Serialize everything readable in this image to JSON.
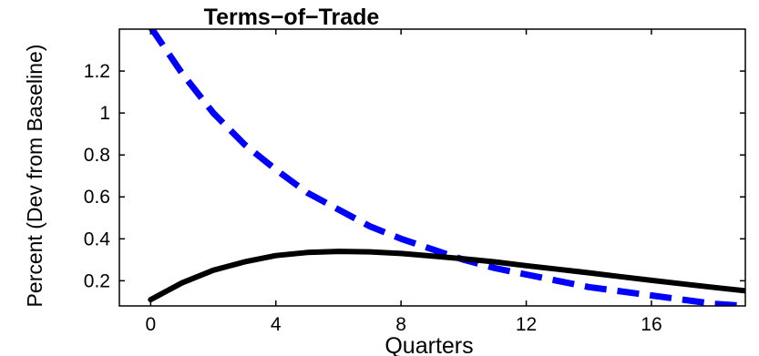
{
  "chart_data": {
    "type": "line",
    "title": "Terms−of−Trade",
    "xlabel": "Quarters",
    "ylabel": "Percent (Dev from Baseline)",
    "xlim": [
      -1,
      19
    ],
    "ylim": [
      0.08,
      1.4
    ],
    "xticks": [
      0,
      4,
      8,
      12,
      16
    ],
    "xtick_labels": [
      "0",
      "4",
      "8",
      "12",
      "16"
    ],
    "yticks": [
      0.2,
      0.4,
      0.6,
      0.8,
      1.0,
      1.2
    ],
    "ytick_labels": [
      "0.2",
      "0.4",
      "0.6",
      "0.8",
      "1",
      "1.2"
    ],
    "grid": false,
    "legend": "none",
    "x": [
      0,
      1,
      2,
      3,
      4,
      5,
      6,
      7,
      8,
      9,
      10,
      11,
      12,
      13,
      14,
      15,
      16,
      17,
      18,
      19
    ],
    "series": [
      {
        "color": "#0000ff",
        "style": "dashed",
        "values": [
          1.41,
          1.19,
          1.0,
          0.85,
          0.73,
          0.62,
          0.54,
          0.46,
          0.4,
          0.35,
          0.3,
          0.26,
          0.23,
          0.2,
          0.17,
          0.15,
          0.13,
          0.11,
          0.09,
          0.08
        ]
      },
      {
        "color": "#000000",
        "style": "solid",
        "values": [
          0.11,
          0.19,
          0.25,
          0.29,
          0.32,
          0.335,
          0.34,
          0.338,
          0.33,
          0.318,
          0.305,
          0.29,
          0.272,
          0.255,
          0.238,
          0.22,
          0.202,
          0.185,
          0.168,
          0.152
        ]
      }
    ]
  }
}
